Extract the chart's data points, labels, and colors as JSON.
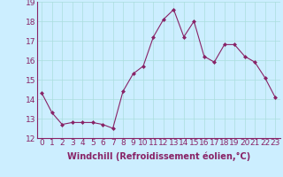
{
  "x": [
    0,
    1,
    2,
    3,
    4,
    5,
    6,
    7,
    8,
    9,
    10,
    11,
    12,
    13,
    14,
    15,
    16,
    17,
    18,
    19,
    20,
    21,
    22,
    23
  ],
  "y": [
    14.3,
    13.3,
    12.7,
    12.8,
    12.8,
    12.8,
    12.7,
    12.5,
    14.4,
    15.3,
    15.7,
    17.2,
    18.1,
    18.6,
    17.2,
    18.0,
    16.2,
    15.9,
    16.8,
    16.8,
    16.2,
    15.9,
    15.1,
    14.1
  ],
  "line_color": "#882266",
  "marker": "D",
  "marker_size": 2,
  "background_color": "#cceeff",
  "grid_color": "#aadddd",
  "xlabel": "Windchill (Refroidissement éolien,°C)",
  "xlabel_fontsize": 7,
  "tick_fontsize": 6.5,
  "ylim": [
    12,
    19
  ],
  "xlim": [
    -0.5,
    23.5
  ],
  "yticks": [
    12,
    13,
    14,
    15,
    16,
    17,
    18,
    19
  ],
  "xticks": [
    0,
    1,
    2,
    3,
    4,
    5,
    6,
    7,
    8,
    9,
    10,
    11,
    12,
    13,
    14,
    15,
    16,
    17,
    18,
    19,
    20,
    21,
    22,
    23
  ]
}
